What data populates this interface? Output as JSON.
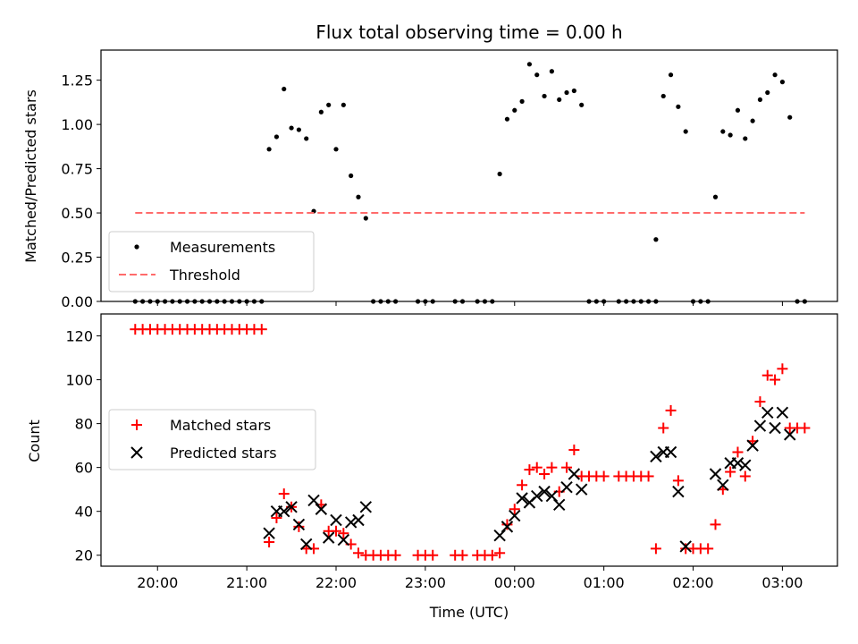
{
  "chart_data": [
    {
      "type": "scatter",
      "title": "Flux total observing time = 0.00 h",
      "xlabel": "",
      "ylabel": "Matched/Predicted stars",
      "xlim": [
        "19:22",
        "03:37"
      ],
      "ylim": [
        0,
        1.42
      ],
      "yticks": [
        0.0,
        0.25,
        0.5,
        0.75,
        1.0,
        1.25
      ],
      "ytick_labels": [
        "0.00",
        "0.25",
        "0.50",
        "0.75",
        "1.00",
        "1.25"
      ],
      "legend": "lower-left",
      "grid": false,
      "series": [
        {
          "name": "Measurements",
          "marker": "dot",
          "color": "#000000",
          "points": [
            [
              "19:45",
              0
            ],
            [
              "19:50",
              0
            ],
            [
              "19:55",
              0
            ],
            [
              "20:00",
              0
            ],
            [
              "20:05",
              0
            ],
            [
              "20:10",
              0
            ],
            [
              "20:15",
              0
            ],
            [
              "20:20",
              0
            ],
            [
              "20:25",
              0
            ],
            [
              "20:30",
              0
            ],
            [
              "20:35",
              0
            ],
            [
              "20:40",
              0
            ],
            [
              "20:45",
              0
            ],
            [
              "20:50",
              0
            ],
            [
              "20:55",
              0
            ],
            [
              "21:00",
              0
            ],
            [
              "21:05",
              0
            ],
            [
              "21:10",
              0
            ],
            [
              "21:15",
              0.86
            ],
            [
              "21:20",
              0.93
            ],
            [
              "21:25",
              1.2
            ],
            [
              "21:30",
              0.98
            ],
            [
              "21:35",
              0.97
            ],
            [
              "21:40",
              0.92
            ],
            [
              "21:45",
              0.51
            ],
            [
              "21:50",
              1.07
            ],
            [
              "21:55",
              1.11
            ],
            [
              "22:00",
              0.86
            ],
            [
              "22:05",
              1.11
            ],
            [
              "22:10",
              0.71
            ],
            [
              "22:15",
              0.59
            ],
            [
              "22:20",
              0.47
            ],
            [
              "22:25",
              0
            ],
            [
              "22:30",
              0
            ],
            [
              "22:35",
              0
            ],
            [
              "22:40",
              0
            ],
            [
              "22:55",
              0
            ],
            [
              "23:00",
              0
            ],
            [
              "23:05",
              0
            ],
            [
              "23:20",
              0
            ],
            [
              "23:25",
              0
            ],
            [
              "23:35",
              0
            ],
            [
              "23:40",
              0
            ],
            [
              "23:45",
              0
            ],
            [
              "23:50",
              0.72
            ],
            [
              "23:55",
              1.03
            ],
            [
              "00:00",
              1.08
            ],
            [
              "00:05",
              1.13
            ],
            [
              "00:10",
              1.34
            ],
            [
              "00:15",
              1.28
            ],
            [
              "00:20",
              1.16
            ],
            [
              "00:25",
              1.3
            ],
            [
              "00:30",
              1.14
            ],
            [
              "00:35",
              1.18
            ],
            [
              "00:40",
              1.19
            ],
            [
              "00:45",
              1.11
            ],
            [
              "00:50",
              0
            ],
            [
              "00:55",
              0
            ],
            [
              "01:00",
              0
            ],
            [
              "01:10",
              0
            ],
            [
              "01:15",
              0
            ],
            [
              "01:20",
              0
            ],
            [
              "01:25",
              0
            ],
            [
              "01:30",
              0
            ],
            [
              "01:35",
              0
            ],
            [
              "01:35",
              0.35
            ],
            [
              "01:40",
              1.16
            ],
            [
              "01:45",
              1.28
            ],
            [
              "01:50",
              1.1
            ],
            [
              "01:55",
              0.96
            ],
            [
              "02:00",
              0
            ],
            [
              "02:05",
              0
            ],
            [
              "02:10",
              0
            ],
            [
              "02:15",
              0.59
            ],
            [
              "02:20",
              0.96
            ],
            [
              "02:25",
              0.94
            ],
            [
              "02:30",
              1.08
            ],
            [
              "02:35",
              0.92
            ],
            [
              "02:40",
              1.02
            ],
            [
              "02:45",
              1.14
            ],
            [
              "02:50",
              1.18
            ],
            [
              "02:55",
              1.28
            ],
            [
              "03:00",
              1.24
            ],
            [
              "03:05",
              1.04
            ],
            [
              "03:10",
              0
            ],
            [
              "03:15",
              0
            ]
          ]
        },
        {
          "name": "Threshold",
          "line": "dashed",
          "color": "#ff6b6b",
          "points": [
            [
              "19:45",
              0.5
            ],
            [
              "03:15",
              0.5
            ]
          ]
        }
      ]
    },
    {
      "type": "scatter",
      "title": "",
      "xlabel": "Time (UTC)",
      "ylabel": "Count",
      "xlim": [
        "19:22",
        "03:37"
      ],
      "ylim": [
        15,
        130
      ],
      "yticks": [
        20,
        40,
        60,
        80,
        100,
        120
      ],
      "xticks": [
        "20:00",
        "21:00",
        "22:00",
        "23:00",
        "00:00",
        "01:00",
        "02:00",
        "03:00"
      ],
      "legend": "center-left",
      "grid": false,
      "series": [
        {
          "name": "Matched stars",
          "marker": "plus",
          "color": "#ff0000",
          "points": [
            [
              "19:45",
              123
            ],
            [
              "19:50",
              123
            ],
            [
              "19:55",
              123
            ],
            [
              "20:00",
              123
            ],
            [
              "20:05",
              123
            ],
            [
              "20:10",
              123
            ],
            [
              "20:15",
              123
            ],
            [
              "20:20",
              123
            ],
            [
              "20:25",
              123
            ],
            [
              "20:30",
              123
            ],
            [
              "20:35",
              123
            ],
            [
              "20:40",
              123
            ],
            [
              "20:45",
              123
            ],
            [
              "20:50",
              123
            ],
            [
              "20:55",
              123
            ],
            [
              "21:00",
              123
            ],
            [
              "21:05",
              123
            ],
            [
              "21:10",
              123
            ],
            [
              "21:15",
              26
            ],
            [
              "21:20",
              37
            ],
            [
              "21:25",
              48
            ],
            [
              "21:30",
              42
            ],
            [
              "21:35",
              33
            ],
            [
              "21:40",
              23
            ],
            [
              "21:45",
              23
            ],
            [
              "21:50",
              43
            ],
            [
              "21:55",
              31
            ],
            [
              "22:00",
              31
            ],
            [
              "22:05",
              30
            ],
            [
              "22:10",
              25
            ],
            [
              "22:15",
              21
            ],
            [
              "22:20",
              20
            ],
            [
              "22:25",
              20
            ],
            [
              "22:30",
              20
            ],
            [
              "22:35",
              20
            ],
            [
              "22:40",
              20
            ],
            [
              "22:55",
              20
            ],
            [
              "23:00",
              20
            ],
            [
              "23:05",
              20
            ],
            [
              "23:20",
              20
            ],
            [
              "23:25",
              20
            ],
            [
              "23:35",
              20
            ],
            [
              "23:40",
              20
            ],
            [
              "23:45",
              20
            ],
            [
              "23:50",
              21
            ],
            [
              "23:55",
              34
            ],
            [
              "00:00",
              41
            ],
            [
              "00:05",
              52
            ],
            [
              "00:10",
              59
            ],
            [
              "00:15",
              60
            ],
            [
              "00:20",
              57
            ],
            [
              "00:25",
              60
            ],
            [
              "00:30",
              49
            ],
            [
              "00:35",
              60
            ],
            [
              "00:40",
              68
            ],
            [
              "00:45",
              56
            ],
            [
              "00:50",
              56
            ],
            [
              "00:55",
              56
            ],
            [
              "01:00",
              56
            ],
            [
              "01:10",
              56
            ],
            [
              "01:15",
              56
            ],
            [
              "01:20",
              56
            ],
            [
              "01:25",
              56
            ],
            [
              "01:30",
              56
            ],
            [
              "01:35",
              23
            ],
            [
              "01:40",
              78
            ],
            [
              "01:45",
              86
            ],
            [
              "01:50",
              54
            ],
            [
              "01:55",
              23
            ],
            [
              "02:00",
              23
            ],
            [
              "02:05",
              23
            ],
            [
              "02:10",
              23
            ],
            [
              "02:15",
              34
            ],
            [
              "02:20",
              50
            ],
            [
              "02:25",
              58
            ],
            [
              "02:30",
              67
            ],
            [
              "02:35",
              56
            ],
            [
              "02:40",
              72
            ],
            [
              "02:45",
              90
            ],
            [
              "02:50",
              102
            ],
            [
              "02:55",
              100
            ],
            [
              "03:00",
              105
            ],
            [
              "03:05",
              78
            ],
            [
              "03:10",
              78
            ],
            [
              "03:15",
              78
            ]
          ]
        },
        {
          "name": "Predicted stars",
          "marker": "x",
          "color": "#000000",
          "points": [
            [
              "21:15",
              30
            ],
            [
              "21:20",
              40
            ],
            [
              "21:25",
              40
            ],
            [
              "21:30",
              42
            ],
            [
              "21:35",
              34
            ],
            [
              "21:40",
              25
            ],
            [
              "21:45",
              45
            ],
            [
              "21:50",
              41
            ],
            [
              "21:55",
              28
            ],
            [
              "22:00",
              36
            ],
            [
              "22:05",
              27
            ],
            [
              "22:10",
              35
            ],
            [
              "22:15",
              36
            ],
            [
              "22:20",
              42
            ],
            [
              "23:50",
              29
            ],
            [
              "23:55",
              33
            ],
            [
              "00:00",
              38
            ],
            [
              "00:05",
              46
            ],
            [
              "00:10",
              44
            ],
            [
              "00:15",
              47
            ],
            [
              "00:20",
              49
            ],
            [
              "00:25",
              47
            ],
            [
              "00:30",
              43
            ],
            [
              "00:35",
              51
            ],
            [
              "00:40",
              57
            ],
            [
              "00:45",
              50
            ],
            [
              "01:35",
              65
            ],
            [
              "01:40",
              67
            ],
            [
              "01:45",
              67
            ],
            [
              "01:50",
              49
            ],
            [
              "01:55",
              24
            ],
            [
              "02:15",
              57
            ],
            [
              "02:20",
              52
            ],
            [
              "02:25",
              62
            ],
            [
              "02:30",
              62
            ],
            [
              "02:35",
              61
            ],
            [
              "02:40",
              70
            ],
            [
              "02:45",
              79
            ],
            [
              "02:50",
              85
            ],
            [
              "02:55",
              78
            ],
            [
              "03:00",
              85
            ],
            [
              "03:05",
              75
            ]
          ]
        }
      ]
    }
  ]
}
